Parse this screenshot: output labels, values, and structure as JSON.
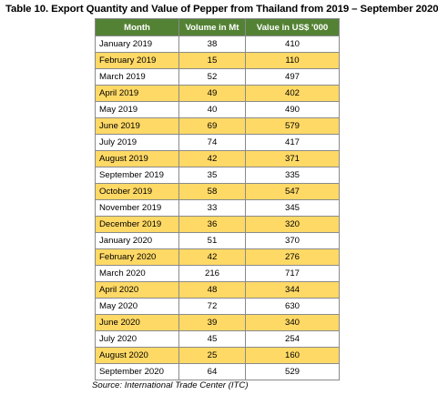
{
  "title": "Table 10. Export Quantity and Value of Pepper from Thailand from 2019 – September 2020",
  "table": {
    "headers": {
      "month": "Month",
      "volume": "Volume in Mt",
      "value": "Value in US$ '000"
    },
    "rows": [
      {
        "month": "January 2019",
        "volume": "38",
        "value": "410"
      },
      {
        "month": "February 2019",
        "volume": "15",
        "value": "110"
      },
      {
        "month": "March 2019",
        "volume": "52",
        "value": "497"
      },
      {
        "month": "April  2019",
        "volume": "49",
        "value": "402"
      },
      {
        "month": "May 2019",
        "volume": "40",
        "value": "490"
      },
      {
        "month": "June 2019",
        "volume": "69",
        "value": "579"
      },
      {
        "month": "July 2019",
        "volume": "74",
        "value": "417"
      },
      {
        "month": "August 2019",
        "volume": "42",
        "value": "371"
      },
      {
        "month": "September 2019",
        "volume": "35",
        "value": "335"
      },
      {
        "month": "October 2019",
        "volume": "58",
        "value": "547"
      },
      {
        "month": "November 2019",
        "volume": "33",
        "value": "345"
      },
      {
        "month": "December 2019",
        "volume": "36",
        "value": "320"
      },
      {
        "month": "January 2020",
        "volume": "51",
        "value": "370"
      },
      {
        "month": "February 2020",
        "volume": "42",
        "value": "276"
      },
      {
        "month": "March 2020",
        "volume": "216",
        "value": "717"
      },
      {
        "month": "April  2020",
        "volume": "48",
        "value": "344"
      },
      {
        "month": "May 2020",
        "volume": "72",
        "value": "630"
      },
      {
        "month": "June 2020",
        "volume": "39",
        "value": "340"
      },
      {
        "month": "July 2020",
        "volume": "45",
        "value": "254"
      },
      {
        "month": "August 2020",
        "volume": "25",
        "value": "160"
      },
      {
        "month": "September 2020",
        "volume": "64",
        "value": "529"
      }
    ]
  },
  "source": "Source: International Trade Center (ITC)",
  "colors": {
    "header_bg": "#548235",
    "header_text": "#ffffff",
    "band_row": "#ffd966",
    "plain_row": "#ffffff"
  }
}
